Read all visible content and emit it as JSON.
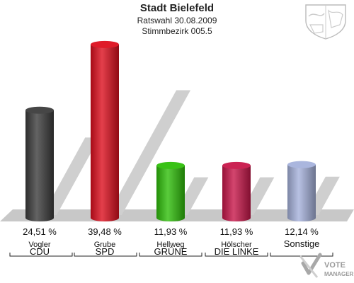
{
  "header": {
    "title": "Stadt Bielefeld",
    "subtitle1": "Ratswahl 30.08.2009",
    "subtitle2": "Stimmbezirk 005.5"
  },
  "branding": {
    "logo_text_line1": "VOTE",
    "logo_text_line2": "MANAGER",
    "crest_icon": "nrw-coat-of-arms-icon"
  },
  "chart_data": {
    "type": "bar",
    "title": "Stadt Bielefeld",
    "subtitle": "Ratswahl 30.08.2009 / Stimmbezirk 005.5",
    "categories": [
      "CDU",
      "SPD",
      "GRÜNE",
      "DIE LINKE",
      "Sonstige"
    ],
    "candidates": [
      "Vogler",
      "Grube",
      "Hellweg",
      "Hölscher",
      ""
    ],
    "values": [
      24.51,
      39.48,
      11.93,
      11.93,
      12.14
    ],
    "value_labels": [
      "24,51 %",
      "39,48 %",
      "11,93 %",
      "11,93 %",
      "12,14 %"
    ],
    "colors": [
      "#3c3c3c",
      "#dd0f1e",
      "#2fbf0a",
      "#c8174a",
      "#a6b2dc"
    ],
    "unit": "%",
    "ylim": [
      0,
      45
    ],
    "grid": false,
    "legend": "none"
  }
}
